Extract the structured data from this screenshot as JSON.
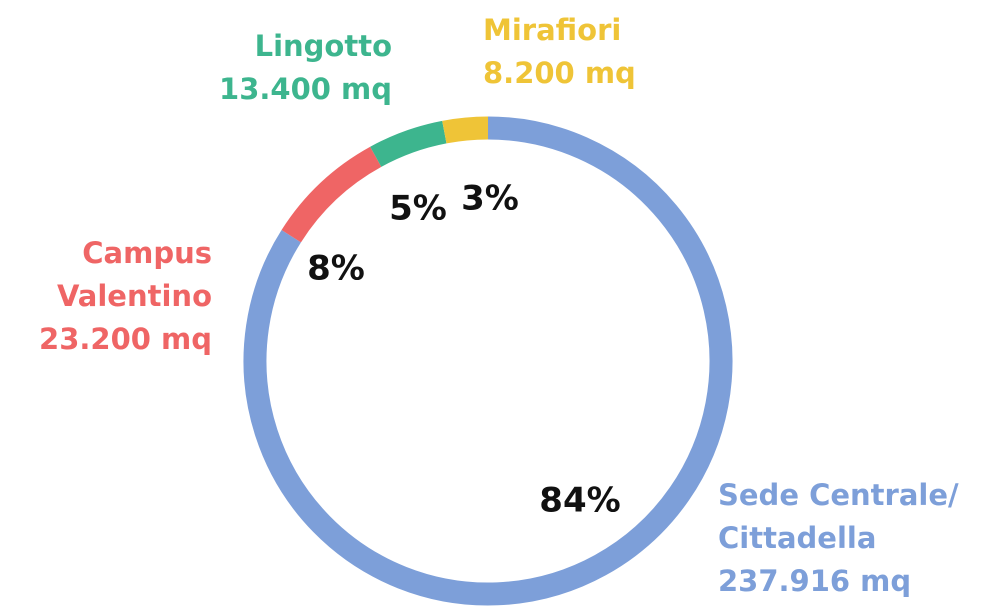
{
  "chart_data": {
    "type": "donut",
    "categories": [
      [
        "Sede Centrale/",
        "Cittadella"
      ],
      [
        "Campus",
        "Valentino"
      ],
      [
        "Lingotto"
      ],
      [
        "Mirafiori"
      ]
    ],
    "area_labels": [
      "237.916 mq",
      "23.200  mq",
      "13.400 mq",
      "8.200 mq"
    ],
    "values": [
      84,
      8,
      5,
      3
    ],
    "value_labels": [
      "84%",
      "8%",
      "5%",
      "3%"
    ],
    "colors": [
      "#7d9fd9",
      "#ef6565",
      "#3db58e",
      "#efc437"
    ]
  }
}
